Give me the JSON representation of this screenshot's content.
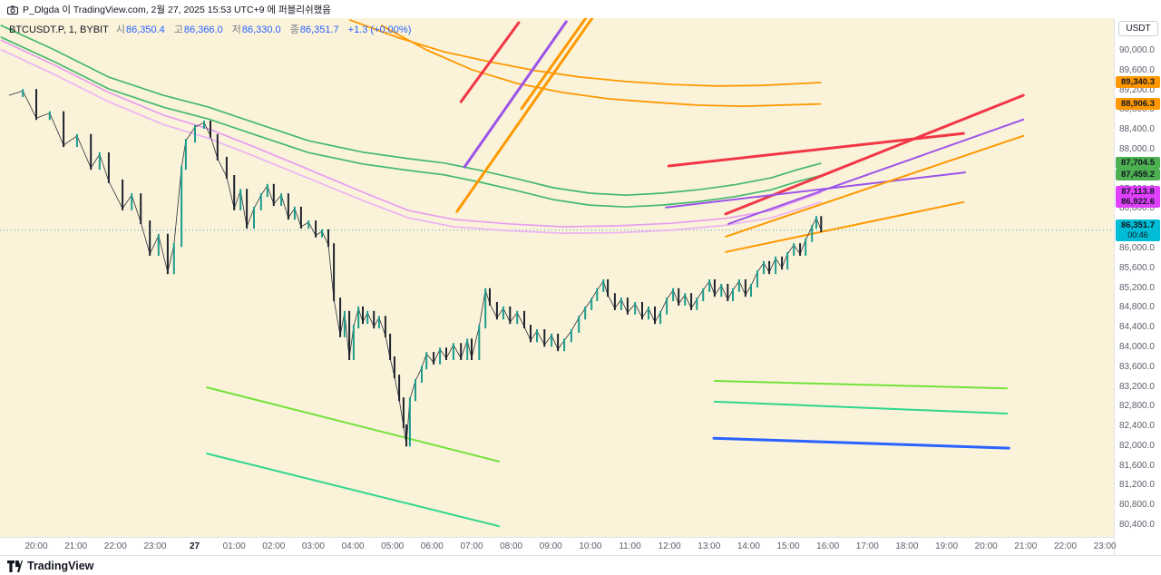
{
  "attribution": {
    "text": "P_Dlgda 이 TradingView.com, 2월 27, 2025 15:53 UTC+9 에 퍼블리쉬했음"
  },
  "legend": {
    "symbol": "BTCUSDT.P, 1, BYBIT",
    "ohlc": [
      {
        "label": "시",
        "value": "86,350.4"
      },
      {
        "label": "고",
        "value": "86,366.0"
      },
      {
        "label": "저",
        "value": "86,330.0"
      },
      {
        "label": "종",
        "value": "86,351.7"
      }
    ],
    "change": "+1.3 (+0.00%)"
  },
  "price_axis": {
    "currency_button": "USDT",
    "labels": [
      "90,000.0",
      "89,600.0",
      "89,200.0",
      "88,800.0",
      "88,400.0",
      "88,000.0",
      "87,600.0",
      "87,200.0",
      "86,800.0",
      "86,400.0",
      "86,000.0",
      "85,600.0",
      "85,200.0",
      "84,800.0",
      "84,400.0",
      "84,000.0",
      "83,600.0",
      "83,200.0",
      "82,800.0",
      "82,400.0",
      "82,000.0",
      "81,600.0",
      "81,200.0",
      "80,800.0",
      "80,400.0"
    ],
    "badges": [
      {
        "text": "89,340.3",
        "price": 89340.3,
        "color": "#ff9800"
      },
      {
        "text": "88,906.3",
        "price": 88906.3,
        "color": "#ff9800"
      },
      {
        "text": "87,704.5",
        "price": 87704.5,
        "color": "#4caf50"
      },
      {
        "text": "87,459.2",
        "price": 87459.2,
        "color": "#4caf50"
      },
      {
        "text": "87,113.8",
        "price": 87113.8,
        "color": "#e040fb"
      },
      {
        "text": "86,922.6",
        "price": 86922.6,
        "color": "#e040fb"
      }
    ],
    "current": {
      "text": "86,351.7",
      "countdown": "00:46",
      "price": 86351.7,
      "color": "#00bcd4"
    }
  },
  "time_axis": {
    "labels": [
      "20:00",
      "21:00",
      "22:00",
      "23:00",
      "27",
      "01:00",
      "02:00",
      "03:00",
      "04:00",
      "05:00",
      "06:00",
      "07:00",
      "08:00",
      "09:00",
      "10:00",
      "11:00",
      "12:00",
      "13:00",
      "14:00",
      "15:00",
      "16:00",
      "17:00",
      "18:00",
      "19:00",
      "20:00",
      "21:00",
      "22:00",
      "23:00"
    ],
    "bold_index": 4
  },
  "footer": {
    "brand": "TradingView"
  },
  "chart_data": {
    "type": "candlestick",
    "symbol": "BTCUSDT.P",
    "interval": "1",
    "exchange": "BYBIT",
    "ohlc_last": {
      "open": 86350.4,
      "high": 86366.0,
      "low": 86330.0,
      "close": 86351.7,
      "change": "+1.3 (+0.00%)"
    },
    "y_axis": {
      "min": 80400,
      "max": 90000,
      "tick": 400,
      "unit": "USDT"
    },
    "x_axis": {
      "start_label": "20:00",
      "end_label": "23:00",
      "hours_shown": 27
    },
    "current_price_line": 86351.7,
    "price_path": [
      [
        -0.69,
        89080
      ],
      [
        -0.34,
        89170
      ],
      [
        0,
        88620
      ],
      [
        0.34,
        88720
      ],
      [
        0.69,
        88070
      ],
      [
        1.03,
        88260
      ],
      [
        1.38,
        87610
      ],
      [
        1.6,
        87890
      ],
      [
        1.83,
        87340
      ],
      [
        2.18,
        86790
      ],
      [
        2.41,
        87060
      ],
      [
        2.64,
        86510
      ],
      [
        2.87,
        85870
      ],
      [
        3.09,
        86240
      ],
      [
        3.32,
        85500
      ],
      [
        3.48,
        86050
      ],
      [
        3.67,
        87610
      ],
      [
        3.78,
        88160
      ],
      [
        4.01,
        88440
      ],
      [
        4.24,
        88530
      ],
      [
        4.4,
        88260
      ],
      [
        4.58,
        87800
      ],
      [
        4.81,
        87430
      ],
      [
        5.0,
        86790
      ],
      [
        5.16,
        87150
      ],
      [
        5.32,
        86420
      ],
      [
        5.5,
        86790
      ],
      [
        5.68,
        87060
      ],
      [
        5.84,
        87250
      ],
      [
        6.0,
        86880
      ],
      [
        6.19,
        87060
      ],
      [
        6.37,
        86600
      ],
      [
        6.53,
        86790
      ],
      [
        6.69,
        86420
      ],
      [
        6.88,
        86510
      ],
      [
        7.06,
        86240
      ],
      [
        7.22,
        86330
      ],
      [
        7.38,
        86050
      ],
      [
        7.52,
        84950
      ],
      [
        7.68,
        84220
      ],
      [
        7.79,
        84680
      ],
      [
        7.91,
        83760
      ],
      [
        8.02,
        84400
      ],
      [
        8.14,
        84770
      ],
      [
        8.25,
        84490
      ],
      [
        8.37,
        84680
      ],
      [
        8.53,
        84400
      ],
      [
        8.66,
        84580
      ],
      [
        8.82,
        84220
      ],
      [
        8.94,
        83760
      ],
      [
        9.05,
        83390
      ],
      [
        9.17,
        82930
      ],
      [
        9.28,
        82380
      ],
      [
        9.35,
        82010
      ],
      [
        9.44,
        82930
      ],
      [
        9.58,
        83300
      ],
      [
        9.74,
        83570
      ],
      [
        9.86,
        83850
      ],
      [
        10.04,
        83670
      ],
      [
        10.2,
        83940
      ],
      [
        10.36,
        83760
      ],
      [
        10.54,
        84030
      ],
      [
        10.73,
        83760
      ],
      [
        10.89,
        84120
      ],
      [
        11.0,
        83760
      ],
      [
        11.19,
        84400
      ],
      [
        11.35,
        85140
      ],
      [
        11.46,
        84860
      ],
      [
        11.64,
        84580
      ],
      [
        11.8,
        84770
      ],
      [
        11.97,
        84490
      ],
      [
        12.15,
        84680
      ],
      [
        12.33,
        84400
      ],
      [
        12.49,
        84120
      ],
      [
        12.65,
        84310
      ],
      [
        12.84,
        84030
      ],
      [
        13.02,
        84220
      ],
      [
        13.18,
        83940
      ],
      [
        13.34,
        84120
      ],
      [
        13.52,
        84310
      ],
      [
        13.71,
        84580
      ],
      [
        13.87,
        84770
      ],
      [
        14.03,
        84950
      ],
      [
        14.17,
        85140
      ],
      [
        14.33,
        85320
      ],
      [
        14.44,
        85040
      ],
      [
        14.62,
        84770
      ],
      [
        14.78,
        84950
      ],
      [
        14.94,
        84680
      ],
      [
        15.13,
        84860
      ],
      [
        15.31,
        84580
      ],
      [
        15.47,
        84770
      ],
      [
        15.63,
        84490
      ],
      [
        15.77,
        84680
      ],
      [
        15.93,
        84950
      ],
      [
        16.09,
        85140
      ],
      [
        16.23,
        84860
      ],
      [
        16.39,
        85040
      ],
      [
        16.55,
        84770
      ],
      [
        16.69,
        84950
      ],
      [
        16.85,
        85140
      ],
      [
        17.01,
        85320
      ],
      [
        17.14,
        85040
      ],
      [
        17.31,
        85230
      ],
      [
        17.47,
        84950
      ],
      [
        17.6,
        85140
      ],
      [
        17.76,
        85320
      ],
      [
        17.92,
        85040
      ],
      [
        18.06,
        85230
      ],
      [
        18.22,
        85500
      ],
      [
        18.38,
        85690
      ],
      [
        18.52,
        85500
      ],
      [
        18.68,
        85780
      ],
      [
        18.84,
        85590
      ],
      [
        18.98,
        85870
      ],
      [
        19.14,
        86050
      ],
      [
        19.3,
        85870
      ],
      [
        19.44,
        86150
      ],
      [
        19.6,
        86420
      ],
      [
        19.71,
        86600
      ],
      [
        19.83,
        86350
      ]
    ],
    "ma_ribbons": [
      {
        "name": "ma-green-upper",
        "color": "#44b86b",
        "width": 1.7,
        "last_value": 87704.5,
        "points": [
          [
            -0.9,
            90500
          ],
          [
            0.46,
            90000
          ],
          [
            1.83,
            89450
          ],
          [
            3.21,
            89080
          ],
          [
            4.36,
            88840
          ],
          [
            5.5,
            88530
          ],
          [
            6.88,
            88160
          ],
          [
            8.25,
            87930
          ],
          [
            9.4,
            87800
          ],
          [
            10.31,
            87710
          ],
          [
            11.23,
            87560
          ],
          [
            12.15,
            87390
          ],
          [
            13.06,
            87210
          ],
          [
            13.98,
            87100
          ],
          [
            14.9,
            87060
          ],
          [
            15.81,
            87100
          ],
          [
            16.73,
            87170
          ],
          [
            17.65,
            87270
          ],
          [
            18.57,
            87410
          ],
          [
            19.25,
            87580
          ],
          [
            19.83,
            87705
          ]
        ]
      },
      {
        "name": "ma-green-lower",
        "color": "#44b86b",
        "width": 1.7,
        "last_value": 87459.2,
        "points": [
          [
            -0.9,
            90260
          ],
          [
            0.46,
            89760
          ],
          [
            1.83,
            89210
          ],
          [
            3.21,
            88840
          ],
          [
            4.36,
            88600
          ],
          [
            5.5,
            88290
          ],
          [
            6.88,
            87920
          ],
          [
            8.25,
            87690
          ],
          [
            9.4,
            87560
          ],
          [
            10.31,
            87470
          ],
          [
            11.23,
            87320
          ],
          [
            12.15,
            87150
          ],
          [
            13.06,
            86970
          ],
          [
            13.98,
            86860
          ],
          [
            14.9,
            86820
          ],
          [
            15.81,
            86860
          ],
          [
            16.73,
            86930
          ],
          [
            17.65,
            87030
          ],
          [
            18.57,
            87170
          ],
          [
            19.25,
            87340
          ],
          [
            19.83,
            87459
          ]
        ]
      },
      {
        "name": "ma-pink-upper",
        "color": "#e79df0",
        "width": 1.7,
        "last_value": 87113.8,
        "points": [
          [
            -0.9,
            90200
          ],
          [
            0.46,
            89690
          ],
          [
            1.83,
            89140
          ],
          [
            3.21,
            88680
          ],
          [
            4.36,
            88400
          ],
          [
            5.5,
            88040
          ],
          [
            6.88,
            87580
          ],
          [
            8.25,
            87120
          ],
          [
            9.4,
            86750
          ],
          [
            10.54,
            86570
          ],
          [
            11.92,
            86480
          ],
          [
            13.29,
            86420
          ],
          [
            14.67,
            86440
          ],
          [
            16.04,
            86490
          ],
          [
            17.42,
            86590
          ],
          [
            18.57,
            86750
          ],
          [
            19.83,
            87114
          ]
        ]
      },
      {
        "name": "ma-pink-lower",
        "color": "#edb3f4",
        "width": 1.7,
        "last_value": 86922.6,
        "points": [
          [
            -0.9,
            90010
          ],
          [
            0.46,
            89500
          ],
          [
            1.83,
            88950
          ],
          [
            3.21,
            88490
          ],
          [
            4.36,
            88210
          ],
          [
            5.5,
            87850
          ],
          [
            6.88,
            87400
          ],
          [
            8.25,
            86950
          ],
          [
            9.4,
            86600
          ],
          [
            10.54,
            86420
          ],
          [
            11.92,
            86340
          ],
          [
            13.29,
            86290
          ],
          [
            14.67,
            86300
          ],
          [
            16.04,
            86350
          ],
          [
            17.42,
            86450
          ],
          [
            18.57,
            86600
          ],
          [
            19.83,
            86923
          ]
        ]
      },
      {
        "name": "ma-orange-upper",
        "color": "#ff9800",
        "width": 1.8,
        "last_value": 89340.3,
        "points": [
          [
            7.91,
            90610
          ],
          [
            9.17,
            90240
          ],
          [
            10.31,
            89960
          ],
          [
            11.46,
            89760
          ],
          [
            12.61,
            89580
          ],
          [
            13.75,
            89450
          ],
          [
            14.9,
            89360
          ],
          [
            16.04,
            89300
          ],
          [
            17.19,
            89270
          ],
          [
            18.34,
            89280
          ],
          [
            19.83,
            89340
          ]
        ]
      },
      {
        "name": "ma-orange-lower",
        "color": "#ff9800",
        "width": 1.8,
        "last_value": 88906.3,
        "points": [
          [
            8.71,
            90500
          ],
          [
            9.86,
            90000
          ],
          [
            11.0,
            89600
          ],
          [
            12.15,
            89320
          ],
          [
            13.29,
            89140
          ],
          [
            14.44,
            89010
          ],
          [
            15.58,
            88940
          ],
          [
            16.73,
            88880
          ],
          [
            17.88,
            88860
          ],
          [
            19.83,
            88906
          ]
        ]
      }
    ],
    "trend_lines": [
      {
        "name": "steep-red",
        "color": "#f23645",
        "width": 3,
        "from": [
          10.73,
          88950
        ],
        "to": [
          12.19,
          90550
        ]
      },
      {
        "name": "steep-purple",
        "color": "#9c53e8",
        "width": 3,
        "from": [
          10.82,
          87630
        ],
        "to": [
          13.39,
          90570
        ]
      },
      {
        "name": "steep-orange-a",
        "color": "#ff9800",
        "width": 3,
        "from": [
          10.63,
          86730
        ],
        "to": [
          14.14,
          90750
        ]
      },
      {
        "name": "steep-orange-b",
        "color": "#ff9800",
        "width": 3,
        "from": [
          12.26,
          88810
        ],
        "to": [
          13.98,
          90750
        ]
      },
      {
        "name": "right-red-a",
        "color": "#f23645",
        "width": 3,
        "from": [
          15.98,
          87650
        ],
        "to": [
          23.43,
          88310
        ]
      },
      {
        "name": "right-red-b",
        "color": "#f23645",
        "width": 3,
        "from": [
          17.42,
          86680
        ],
        "to": [
          24.94,
          89080
        ]
      },
      {
        "name": "right-purple-a",
        "color": "#9c53e8",
        "width": 2,
        "from": [
          15.91,
          86810
        ],
        "to": [
          23.47,
          87520
        ]
      },
      {
        "name": "right-purple-b",
        "color": "#9c53e8",
        "width": 2,
        "from": [
          17.49,
          86480
        ],
        "to": [
          24.94,
          88590
        ]
      },
      {
        "name": "right-orange-a",
        "color": "#ff9800",
        "width": 2,
        "from": [
          17.42,
          86220
        ],
        "to": [
          24.94,
          88260
        ]
      },
      {
        "name": "right-orange-b",
        "color": "#ff9800",
        "width": 2,
        "from": [
          17.42,
          85910
        ],
        "to": [
          23.43,
          86920
        ]
      },
      {
        "name": "left-lime",
        "color": "#72e239",
        "width": 2,
        "from": [
          4.31,
          83170
        ],
        "to": [
          11.69,
          81670
        ]
      },
      {
        "name": "left-green",
        "color": "#2fd68c",
        "width": 2,
        "from": [
          4.31,
          81830
        ],
        "to": [
          11.69,
          80360
        ]
      },
      {
        "name": "right-lime",
        "color": "#72e239",
        "width": 2,
        "from": [
          17.14,
          83300
        ],
        "to": [
          24.53,
          83150
        ]
      },
      {
        "name": "right-green",
        "color": "#2fd68c",
        "width": 2,
        "from": [
          17.14,
          82880
        ],
        "to": [
          24.53,
          82640
        ]
      },
      {
        "name": "right-blue",
        "color": "#2962ff",
        "width": 3,
        "from": [
          17.12,
          82140
        ],
        "to": [
          24.57,
          81940
        ]
      }
    ]
  }
}
